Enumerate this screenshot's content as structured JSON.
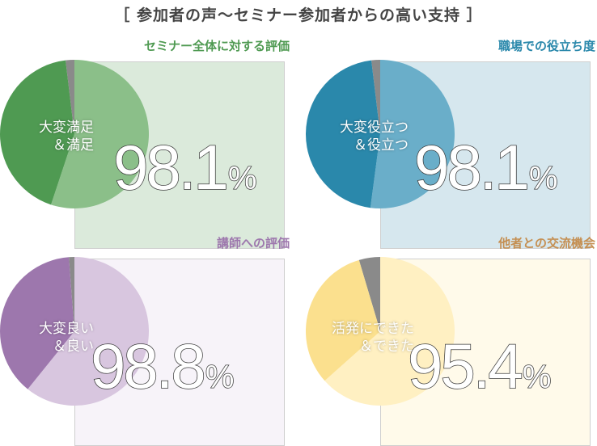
{
  "header": {
    "title": "［ 参加者の声～セミナー参加者からの高い支持 ］"
  },
  "chart_data": [
    {
      "type": "pie",
      "title": "セミナー全体に対する評価",
      "label_lines": [
        "大変満足",
        "＆満足"
      ],
      "pct_number": "98.1",
      "pct_unit": "%",
      "slices": [
        {
          "value": 43.0,
          "color": "#4f9a52"
        },
        {
          "value": 55.1,
          "color": "#8bbf89"
        },
        {
          "value": 1.9,
          "color": "#8a8a8a"
        }
      ],
      "panel_bg": "#dbeadb",
      "title_color": "#4f9a52"
    },
    {
      "type": "pie",
      "title": "職場での役立ち度",
      "label_lines": [
        "大変役立つ",
        "＆役立つ"
      ],
      "pct_number": "98.1",
      "pct_unit": "%",
      "slices": [
        {
          "value": 46.0,
          "color": "#2a88ab"
        },
        {
          "value": 52.1,
          "color": "#6aaec9"
        },
        {
          "value": 1.9,
          "color": "#8a8a8a"
        }
      ],
      "panel_bg": "#d6e7ee",
      "title_color": "#2a88ab"
    },
    {
      "type": "pie",
      "title": "講師への評価",
      "label_lines": [
        "大変良い",
        "＆良い"
      ],
      "pct_number": "98.8",
      "pct_unit": "%",
      "slices": [
        {
          "value": 38.0,
          "color": "#9d77ad"
        },
        {
          "value": 60.8,
          "color": "#d8c6df"
        },
        {
          "value": 1.2,
          "color": "#8a8a8a"
        }
      ],
      "panel_bg": "#f7f3f9",
      "title_color": "#9d77ad"
    },
    {
      "type": "pie",
      "title": "他者との交流機会",
      "label_lines": [
        "活発にできた",
        "＆できた"
      ],
      "pct_number": "95.4",
      "pct_unit": "%",
      "slices": [
        {
          "value": 32.0,
          "color": "#fbe08e"
        },
        {
          "value": 63.4,
          "color": "#fff0c2"
        },
        {
          "value": 4.6,
          "color": "#8a8a8a"
        }
      ],
      "panel_bg": "#fffaea",
      "title_color": "#c58f52"
    }
  ]
}
